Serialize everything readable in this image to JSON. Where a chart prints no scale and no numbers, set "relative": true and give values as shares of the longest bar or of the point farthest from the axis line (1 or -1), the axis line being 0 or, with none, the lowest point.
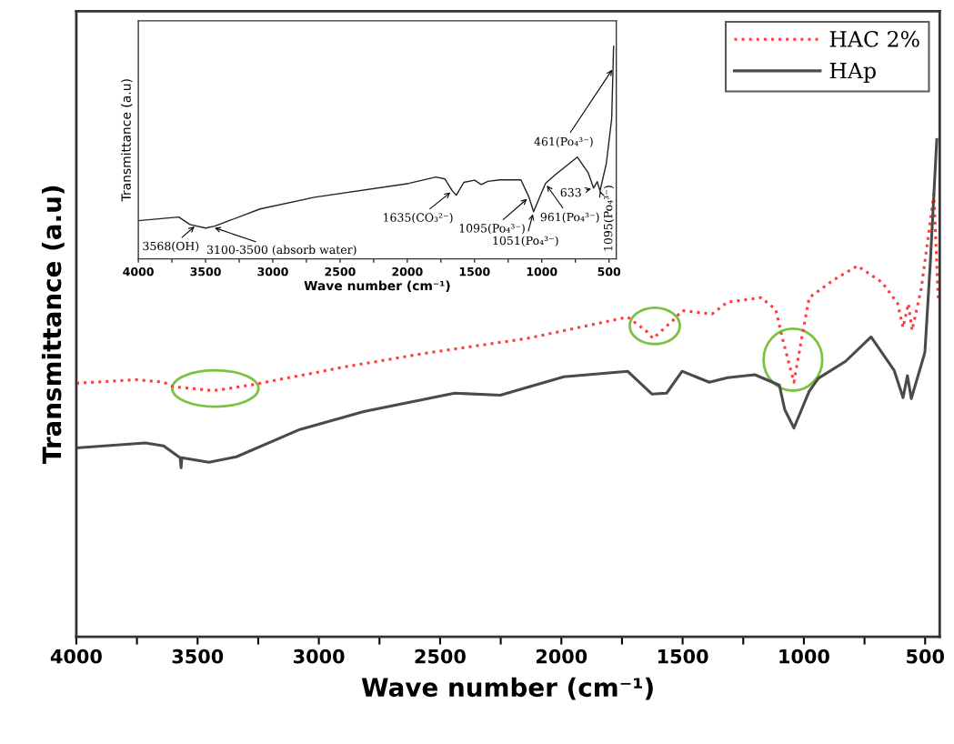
{
  "chart_data": [
    {
      "type": "line",
      "xlabel": "Wave number (cm⁻¹)",
      "ylabel": "Transmittance (a.u)",
      "relative": true,
      "tick_labels": "x",
      "legend": "top right",
      "xlim": [
        4000,
        440
      ],
      "xticks": [
        4000,
        {
          "value": 3750,
          "label": null
        },
        3500,
        {
          "value": 3250,
          "label": null
        },
        3000,
        {
          "value": 2750,
          "label": null
        },
        2500,
        {
          "value": 2250,
          "label": null
        },
        2000,
        {
          "value": 1750,
          "label": null
        },
        1500,
        {
          "value": 1250,
          "label": null
        },
        1000,
        {
          "value": 750,
          "label": null
        },
        500
      ],
      "series": [
        {
          "name": "HAC 2%",
          "color": "#ff3b3b",
          "line_style": "dotted",
          "x": [
            4000,
            3752,
            3640,
            3602,
            3434,
            3284,
            2890,
            2564,
            2140,
            1727,
            1652,
            1622,
            1540,
            1502,
            1379,
            1315,
            1176,
            1116,
            1090,
            1041,
            1008,
            978,
            876,
            779,
            678,
            614,
            591,
            569,
            554,
            516,
            464,
            446
          ],
          "values": [
            0.51,
            0.517,
            0.512,
            0.503,
            0.495,
            0.506,
            0.543,
            0.57,
            0.6,
            0.643,
            0.616,
            0.6,
            0.636,
            0.656,
            0.649,
            0.673,
            0.682,
            0.658,
            0.603,
            0.512,
            0.603,
            0.682,
            0.718,
            0.746,
            0.713,
            0.671,
            0.622,
            0.67,
            0.616,
            0.7,
            0.89,
            0.68
          ]
        },
        {
          "name": "HAp",
          "color": "#4a4a4a",
          "line_style": "solid",
          "x": [
            4000,
            3715,
            3640,
            3572,
            3568,
            3565,
            3453,
            3340,
            3078,
            2815,
            2440,
            2252,
            1990,
            1727,
            1626,
            1566,
            1502,
            1390,
            1315,
            1202,
            1101,
            1079,
            1041,
            978,
            940,
            828,
            723,
            628,
            591,
            573,
            557,
            501,
            479,
            452
          ],
          "values": [
            0.38,
            0.39,
            0.384,
            0.36,
            0.34,
            0.36,
            0.351,
            0.362,
            0.417,
            0.453,
            0.49,
            0.486,
            0.523,
            0.534,
            0.488,
            0.49,
            0.534,
            0.512,
            0.521,
            0.527,
            0.506,
            0.457,
            0.42,
            0.494,
            0.52,
            0.554,
            0.603,
            0.536,
            0.481,
            0.525,
            0.479,
            0.572,
            0.75,
            1.0
          ]
        }
      ]
    },
    {
      "type": "line",
      "xlabel": "Wave number (cm⁻¹)",
      "ylabel": "Transmittance (a.u)",
      "relative": true,
      "tick_labels": "x",
      "xlim": [
        4000,
        446
      ],
      "xticks": [
        4000,
        {
          "value": 3750,
          "label": null
        },
        3500,
        {
          "value": 3250,
          "label": null
        },
        3000,
        {
          "value": 2750,
          "label": null
        },
        2500,
        {
          "value": 2250,
          "label": null
        },
        2000,
        {
          "value": 1750,
          "label": null
        },
        1500,
        {
          "value": 1250,
          "label": null
        },
        1000,
        {
          "value": 750,
          "label": null
        },
        500
      ],
      "series": [
        {
          "color": "#222222",
          "line_style": "solid",
          "x": [
            4000,
            3700,
            3615,
            3500,
            3432,
            3095,
            2690,
            1990,
            1787,
            1720,
            1665,
            1635,
            1580,
            1500,
            1450,
            1400,
            1311,
            1155,
            1095,
            1061,
            973,
            905,
            736,
            655,
            615,
            588,
            567,
            520,
            480,
            466
          ],
          "values": [
            0.18,
            0.197,
            0.162,
            0.145,
            0.154,
            0.235,
            0.29,
            0.355,
            0.385,
            0.376,
            0.32,
            0.3,
            0.36,
            0.37,
            0.35,
            0.365,
            0.372,
            0.372,
            0.29,
            0.222,
            0.355,
            0.393,
            0.479,
            0.406,
            0.333,
            0.363,
            0.32,
            0.449,
            0.66,
            1.0
          ]
        }
      ],
      "annotations": [
        {
          "text": "3568(OH)",
          "x": 3568,
          "y": 0.16
        },
        {
          "text": "3100-3500 (absorb water)",
          "x": 3450,
          "y": 0.15
        },
        {
          "text": "1635(CO₃²⁻)",
          "x": 1665,
          "y": 0.32
        },
        {
          "text": "1095(Po₄³⁻)",
          "x": 1095,
          "y": 0.29
        },
        {
          "text": "1051(Po₄³⁻)",
          "x": 1061,
          "y": 0.222
        },
        {
          "text": "961(Po₄³⁻)",
          "x": 973,
          "y": 0.355
        },
        {
          "text": "633",
          "x": 615,
          "y": 0.333
        },
        {
          "text": "461(Po₄³⁻)",
          "x": 466,
          "y": 0.9
        },
        {
          "text": "1095(Po₄³⁻)",
          "x": 567,
          "y": 0.32
        }
      ]
    }
  ]
}
